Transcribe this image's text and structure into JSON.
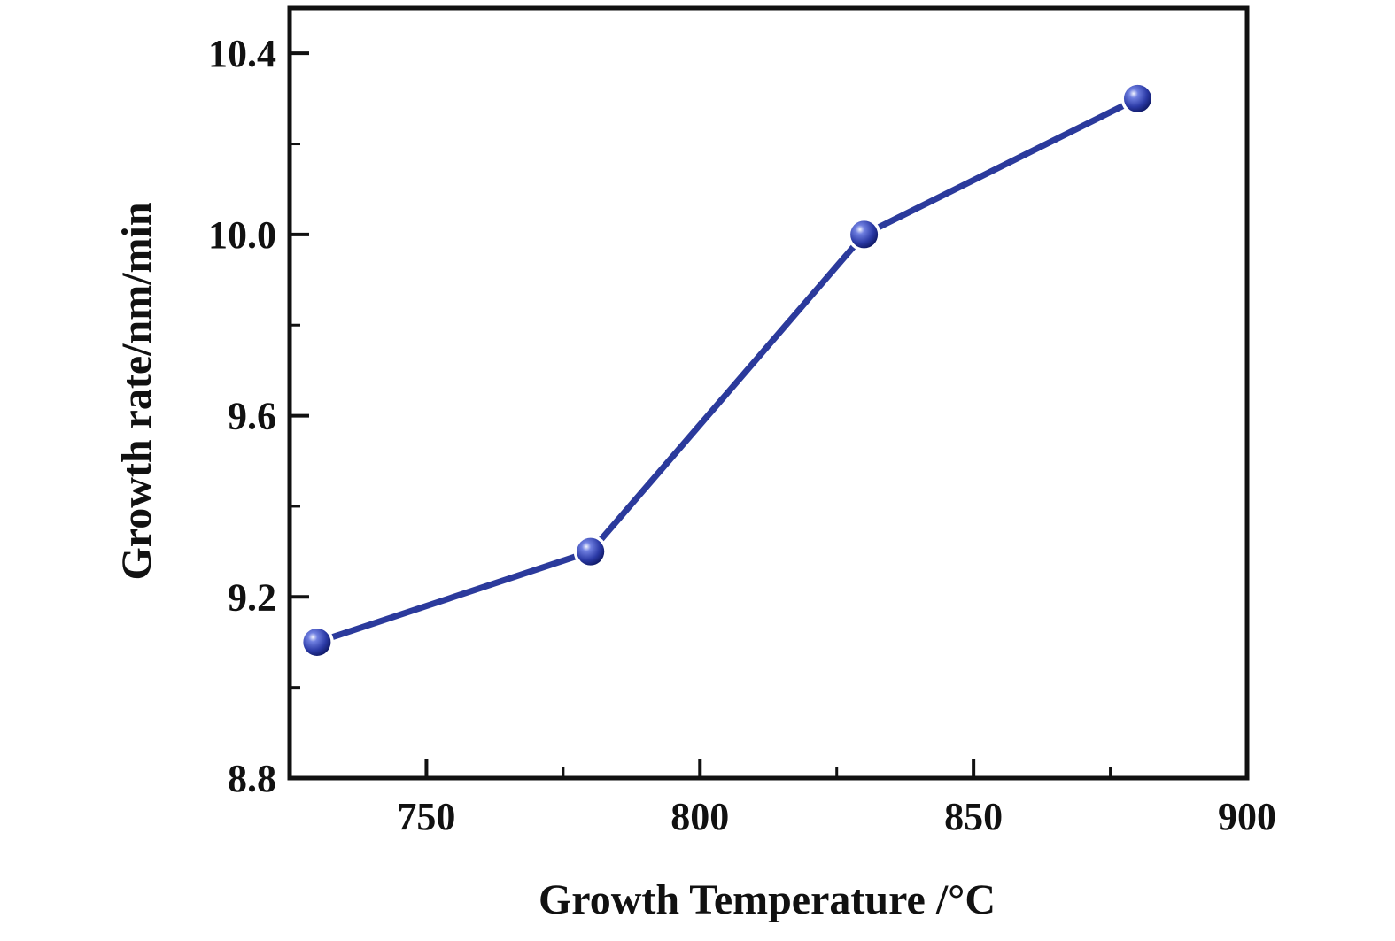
{
  "chart_data": {
    "type": "line",
    "title": "",
    "xlabel": "Growth Temperature /°C",
    "ylabel": "Growth rate/nm/min",
    "xlim": [
      725,
      900
    ],
    "ylim": [
      8.8,
      10.5
    ],
    "x_ticks_major": [
      750,
      800,
      850,
      900
    ],
    "x_ticks_minor": [
      775,
      825,
      875
    ],
    "x_tick_labels": [
      "750",
      "800",
      "850",
      "900"
    ],
    "y_ticks_major": [
      8.8,
      9.2,
      9.6,
      10.0,
      10.4
    ],
    "y_ticks_minor": [
      9.0,
      9.4,
      9.8,
      10.2
    ],
    "y_tick_labels": [
      "8.8",
      "9.2",
      "9.6",
      "10.0",
      "10.4"
    ],
    "grid": false,
    "series": [
      {
        "x": [
          730,
          780,
          830,
          880
        ],
        "values": [
          9.1,
          9.3,
          10.0,
          10.3
        ],
        "color": "#2b3a9c",
        "marker": "sphere"
      }
    ]
  }
}
